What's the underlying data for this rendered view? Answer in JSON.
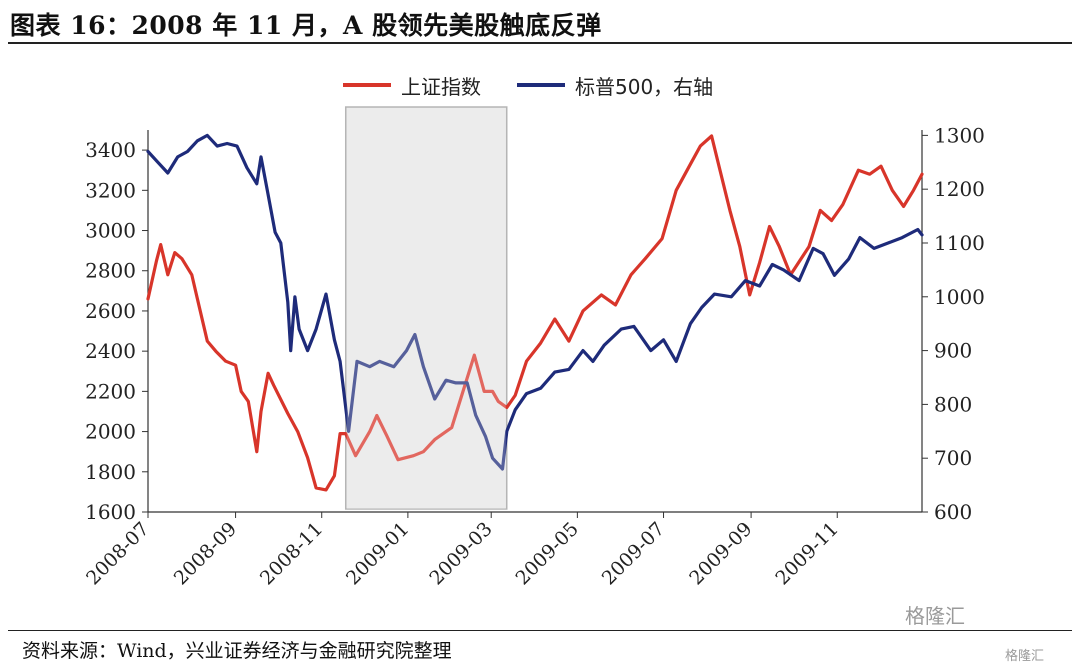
{
  "title": "图表 16：2008 年 11 月，A 股领先美股触底反弹",
  "source": "资料来源：Wind，兴业证券经济与金融研究院整理",
  "watermark": "格隆汇",
  "watermark2": "格隆汇",
  "chart_data": {
    "type": "line",
    "legend_position": "top-center",
    "grid": false,
    "highlight": {
      "from": "2008-11-18",
      "to": "2009-03-12",
      "color": "#e6e6e6"
    },
    "x_ticks": [
      "2008-07",
      "2008-09",
      "2008-11",
      "2009-01",
      "2009-03",
      "2009-05",
      "2009-07",
      "2009-09",
      "2009-11"
    ],
    "y_left": {
      "ticks": [
        1600,
        1800,
        2000,
        2200,
        2400,
        2600,
        2800,
        3000,
        3200,
        3400
      ],
      "lim": [
        1600,
        3500
      ]
    },
    "y_right": {
      "ticks": [
        600,
        700,
        800,
        900,
        1000,
        1100,
        1200,
        1300
      ],
      "lim": [
        600,
        1310
      ]
    },
    "series": [
      {
        "name": "上证指数",
        "axis": "left",
        "color": "#d8352a",
        "points": [
          [
            "2008-07-01",
            2660
          ],
          [
            "2008-07-07",
            2850
          ],
          [
            "2008-07-10",
            2930
          ],
          [
            "2008-07-15",
            2780
          ],
          [
            "2008-07-20",
            2890
          ],
          [
            "2008-07-25",
            2860
          ],
          [
            "2008-08-01",
            2780
          ],
          [
            "2008-08-05",
            2660
          ],
          [
            "2008-08-12",
            2450
          ],
          [
            "2008-08-18",
            2400
          ],
          [
            "2008-08-25",
            2350
          ],
          [
            "2008-09-01",
            2330
          ],
          [
            "2008-09-05",
            2200
          ],
          [
            "2008-09-10",
            2150
          ],
          [
            "2008-09-16",
            1900
          ],
          [
            "2008-09-19",
            2100
          ],
          [
            "2008-09-24",
            2290
          ],
          [
            "2008-09-28",
            2230
          ],
          [
            "2008-10-08",
            2090
          ],
          [
            "2008-10-15",
            2000
          ],
          [
            "2008-10-22",
            1870
          ],
          [
            "2008-10-28",
            1720
          ],
          [
            "2008-11-04",
            1710
          ],
          [
            "2008-11-10",
            1780
          ],
          [
            "2008-11-14",
            1990
          ],
          [
            "2008-11-18",
            1990
          ],
          [
            "2008-11-25",
            1880
          ],
          [
            "2008-12-05",
            2000
          ],
          [
            "2008-12-10",
            2080
          ],
          [
            "2008-12-17",
            1980
          ],
          [
            "2008-12-25",
            1860
          ],
          [
            "2009-01-05",
            1880
          ],
          [
            "2009-01-12",
            1900
          ],
          [
            "2009-01-20",
            1960
          ],
          [
            "2009-02-01",
            2020
          ],
          [
            "2009-02-09",
            2200
          ],
          [
            "2009-02-17",
            2380
          ],
          [
            "2009-02-24",
            2200
          ],
          [
            "2009-03-02",
            2200
          ],
          [
            "2009-03-06",
            2150
          ],
          [
            "2009-03-12",
            2120
          ],
          [
            "2009-03-18",
            2180
          ],
          [
            "2009-03-26",
            2350
          ],
          [
            "2009-04-05",
            2440
          ],
          [
            "2009-04-15",
            2560
          ],
          [
            "2009-04-25",
            2450
          ],
          [
            "2009-05-05",
            2600
          ],
          [
            "2009-05-18",
            2680
          ],
          [
            "2009-05-28",
            2630
          ],
          [
            "2009-06-08",
            2780
          ],
          [
            "2009-06-18",
            2860
          ],
          [
            "2009-06-30",
            2960
          ],
          [
            "2009-07-10",
            3200
          ],
          [
            "2009-07-20",
            3330
          ],
          [
            "2009-07-27",
            3420
          ],
          [
            "2009-08-04",
            3470
          ],
          [
            "2009-08-10",
            3300
          ],
          [
            "2009-08-17",
            3100
          ],
          [
            "2009-08-24",
            2920
          ],
          [
            "2009-08-31",
            2680
          ],
          [
            "2009-09-07",
            2840
          ],
          [
            "2009-09-14",
            3020
          ],
          [
            "2009-09-21",
            2920
          ],
          [
            "2009-09-29",
            2780
          ],
          [
            "2009-10-12",
            2920
          ],
          [
            "2009-10-20",
            3100
          ],
          [
            "2009-10-28",
            3050
          ],
          [
            "2009-11-05",
            3130
          ],
          [
            "2009-11-16",
            3300
          ],
          [
            "2009-11-24",
            3280
          ],
          [
            "2009-12-02",
            3320
          ],
          [
            "2009-12-10",
            3200
          ],
          [
            "2009-12-18",
            3120
          ],
          [
            "2009-12-25",
            3200
          ],
          [
            "2009-12-31",
            3280
          ]
        ]
      },
      {
        "name": "标普500，右轴",
        "axis": "right",
        "color": "#1e2b7a",
        "points": [
          [
            "2008-07-01",
            1270
          ],
          [
            "2008-07-08",
            1250
          ],
          [
            "2008-07-15",
            1230
          ],
          [
            "2008-07-22",
            1260
          ],
          [
            "2008-07-29",
            1270
          ],
          [
            "2008-08-05",
            1290
          ],
          [
            "2008-08-12",
            1300
          ],
          [
            "2008-08-19",
            1280
          ],
          [
            "2008-08-26",
            1285
          ],
          [
            "2008-09-02",
            1280
          ],
          [
            "2008-09-09",
            1240
          ],
          [
            "2008-09-16",
            1210
          ],
          [
            "2008-09-19",
            1260
          ],
          [
            "2008-09-24",
            1190
          ],
          [
            "2008-09-29",
            1120
          ],
          [
            "2008-10-03",
            1100
          ],
          [
            "2008-10-08",
            990
          ],
          [
            "2008-10-10",
            900
          ],
          [
            "2008-10-13",
            1000
          ],
          [
            "2008-10-16",
            940
          ],
          [
            "2008-10-22",
            900
          ],
          [
            "2008-10-28",
            940
          ],
          [
            "2008-11-04",
            1005
          ],
          [
            "2008-11-10",
            920
          ],
          [
            "2008-11-14",
            880
          ],
          [
            "2008-11-20",
            750
          ],
          [
            "2008-11-26",
            880
          ],
          [
            "2008-12-05",
            870
          ],
          [
            "2008-12-12",
            880
          ],
          [
            "2008-12-22",
            870
          ],
          [
            "2008-12-31",
            900
          ],
          [
            "2009-01-06",
            930
          ],
          [
            "2009-01-12",
            870
          ],
          [
            "2009-01-20",
            810
          ],
          [
            "2009-01-28",
            845
          ],
          [
            "2009-02-04",
            840
          ],
          [
            "2009-02-12",
            840
          ],
          [
            "2009-02-18",
            780
          ],
          [
            "2009-02-25",
            740
          ],
          [
            "2009-03-02",
            700
          ],
          [
            "2009-03-09",
            680
          ],
          [
            "2009-03-12",
            750
          ],
          [
            "2009-03-18",
            790
          ],
          [
            "2009-03-26",
            820
          ],
          [
            "2009-04-05",
            830
          ],
          [
            "2009-04-15",
            860
          ],
          [
            "2009-04-25",
            865
          ],
          [
            "2009-05-05",
            900
          ],
          [
            "2009-05-12",
            880
          ],
          [
            "2009-05-20",
            910
          ],
          [
            "2009-06-01",
            940
          ],
          [
            "2009-06-10",
            945
          ],
          [
            "2009-06-22",
            900
          ],
          [
            "2009-07-01",
            920
          ],
          [
            "2009-07-10",
            880
          ],
          [
            "2009-07-20",
            950
          ],
          [
            "2009-07-28",
            980
          ],
          [
            "2009-08-06",
            1005
          ],
          [
            "2009-08-18",
            1000
          ],
          [
            "2009-08-28",
            1030
          ],
          [
            "2009-09-07",
            1020
          ],
          [
            "2009-09-16",
            1060
          ],
          [
            "2009-09-24",
            1050
          ],
          [
            "2009-10-05",
            1030
          ],
          [
            "2009-10-15",
            1090
          ],
          [
            "2009-10-22",
            1080
          ],
          [
            "2009-10-30",
            1040
          ],
          [
            "2009-11-09",
            1070
          ],
          [
            "2009-11-17",
            1110
          ],
          [
            "2009-11-27",
            1090
          ],
          [
            "2009-12-07",
            1100
          ],
          [
            "2009-12-17",
            1110
          ],
          [
            "2009-12-28",
            1125
          ],
          [
            "2009-12-31",
            1115
          ]
        ]
      }
    ]
  }
}
